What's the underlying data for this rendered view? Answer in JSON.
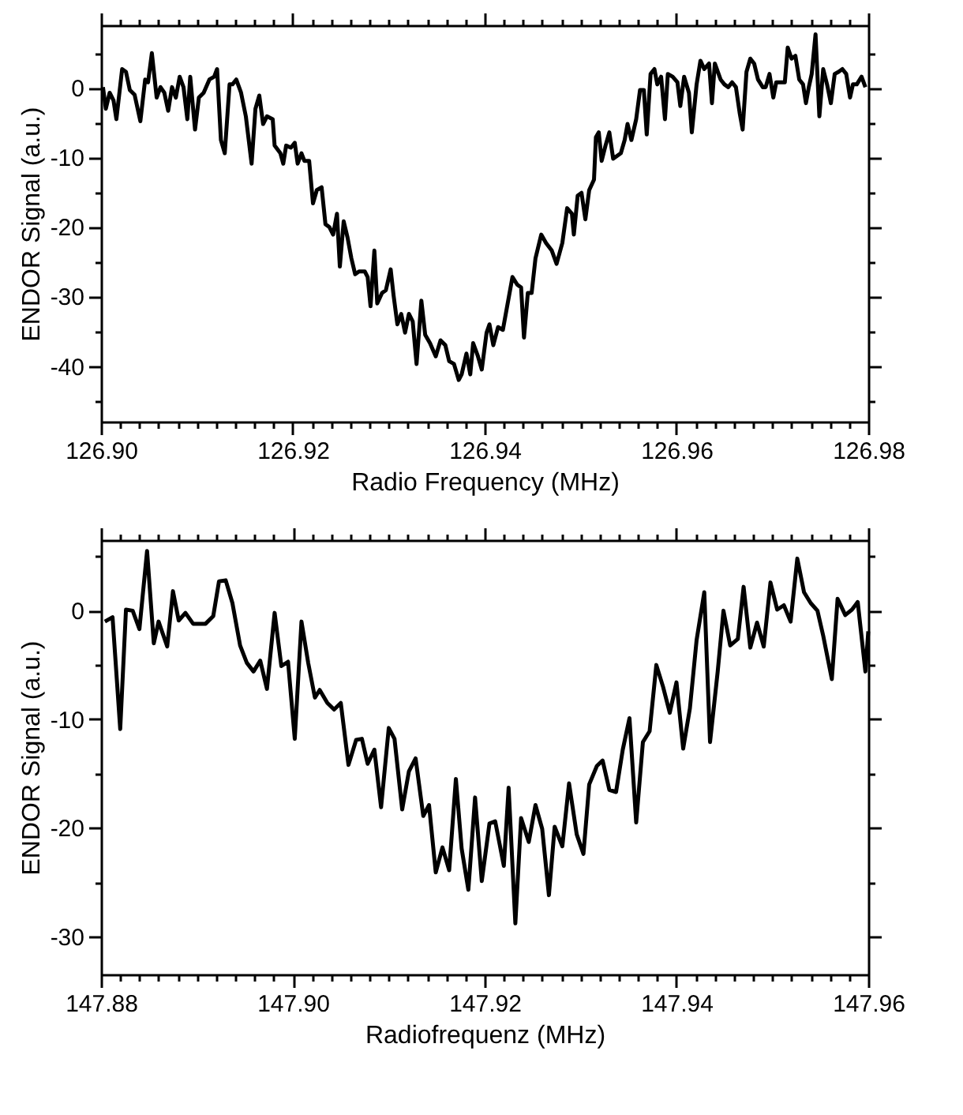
{
  "chart_data": [
    {
      "type": "line",
      "xlabel": "Radio Frequency (MHz)",
      "ylabel": "ENDOR Signal (a.u.)",
      "line_style": "solid",
      "marker": "none",
      "xlim": [
        126.9,
        126.98
      ],
      "ylim": [
        -48,
        9
      ],
      "xticks": [
        {
          "value": 126.9,
          "label": "126.90"
        },
        {
          "value": 126.902,
          "label": null
        },
        {
          "value": 126.904,
          "label": null
        },
        {
          "value": 126.906,
          "label": null
        },
        {
          "value": 126.908,
          "label": null
        },
        {
          "value": 126.91,
          "label": null
        },
        {
          "value": 126.912,
          "label": null
        },
        {
          "value": 126.914,
          "label": null
        },
        {
          "value": 126.916,
          "label": null
        },
        {
          "value": 126.918,
          "label": null
        },
        {
          "value": 126.92,
          "label": "126.92"
        },
        {
          "value": 126.922,
          "label": null
        },
        {
          "value": 126.924,
          "label": null
        },
        {
          "value": 126.926,
          "label": null
        },
        {
          "value": 126.928,
          "label": null
        },
        {
          "value": 126.93,
          "label": null
        },
        {
          "value": 126.932,
          "label": null
        },
        {
          "value": 126.934,
          "label": null
        },
        {
          "value": 126.936,
          "label": null
        },
        {
          "value": 126.938,
          "label": null
        },
        {
          "value": 126.94,
          "label": "126.94"
        },
        {
          "value": 126.942,
          "label": null
        },
        {
          "value": 126.944,
          "label": null
        },
        {
          "value": 126.946,
          "label": null
        },
        {
          "value": 126.948,
          "label": null
        },
        {
          "value": 126.95,
          "label": null
        },
        {
          "value": 126.952,
          "label": null
        },
        {
          "value": 126.954,
          "label": null
        },
        {
          "value": 126.956,
          "label": null
        },
        {
          "value": 126.958,
          "label": null
        },
        {
          "value": 126.96,
          "label": "126.96"
        },
        {
          "value": 126.962,
          "label": null
        },
        {
          "value": 126.964,
          "label": null
        },
        {
          "value": 126.966,
          "label": null
        },
        {
          "value": 126.968,
          "label": null
        },
        {
          "value": 126.97,
          "label": null
        },
        {
          "value": 126.972,
          "label": null
        },
        {
          "value": 126.974,
          "label": null
        },
        {
          "value": 126.976,
          "label": null
        },
        {
          "value": 126.978,
          "label": null
        },
        {
          "value": 126.98,
          "label": "126.98"
        }
      ],
      "yticks": [
        {
          "value": -45,
          "label": null
        },
        -40,
        {
          "value": -35,
          "label": null
        },
        -30,
        {
          "value": -25,
          "label": null
        },
        -20,
        {
          "value": -15,
          "label": null
        },
        -10,
        {
          "value": -5,
          "label": null
        },
        0,
        {
          "value": 5,
          "label": null
        }
      ],
      "x": [
        126.9002,
        126.9005,
        126.9009,
        126.9013,
        126.9016,
        126.9022,
        126.9026,
        126.903,
        126.9035,
        126.9041,
        126.9046,
        126.9049,
        126.9053,
        126.9058,
        126.9062,
        126.9066,
        126.907,
        126.9074,
        126.9078,
        126.9082,
        126.9086,
        126.909,
        126.9093,
        126.9098,
        126.9102,
        126.9107,
        126.9113,
        126.9118,
        126.9121,
        126.9125,
        126.9129,
        126.9134,
        126.9137,
        126.9141,
        126.9146,
        126.9151,
        126.9157,
        126.9161,
        126.9165,
        126.9169,
        126.9173,
        126.9179,
        126.9181,
        126.9187,
        126.919,
        126.9193,
        126.9198,
        126.9202,
        126.9205,
        126.9209,
        126.9212,
        126.9217,
        126.9221,
        126.9225,
        126.923,
        126.9234,
        126.9238,
        126.9242,
        126.9246,
        126.9249,
        126.9253,
        126.9257,
        126.9261,
        126.9265,
        126.9269,
        126.9275,
        126.9278,
        126.9281,
        126.9285,
        126.9288,
        126.9293,
        126.9297,
        126.9302,
        126.9305,
        126.9309,
        126.9313,
        126.9317,
        126.9321,
        126.9325,
        126.9329,
        126.9334,
        126.9338,
        126.9343,
        126.9349,
        126.9354,
        126.9359,
        126.9363,
        126.9368,
        126.9373,
        126.9376,
        126.9381,
        126.9385,
        126.9388,
        126.9393,
        126.9397,
        126.9402,
        126.9405,
        126.9409,
        126.9414,
        126.9419,
        126.9429,
        126.9434,
        126.9438,
        126.9441,
        126.9445,
        126.9449,
        126.9453,
        126.9459,
        126.9464,
        126.947,
        126.9475,
        126.9481,
        126.9486,
        126.9491,
        126.9493,
        126.9497,
        126.9501,
        126.9505,
        126.9509,
        126.9514,
        126.9516,
        126.9519,
        126.9522,
        126.9526,
        126.953,
        126.9534,
        126.9538,
        126.9542,
        126.9546,
        126.9549,
        126.9553,
        126.9558,
        126.9562,
        126.9566,
        126.9569,
        126.9573,
        126.9577,
        126.958,
        126.9584,
        126.9588,
        126.9591,
        126.9596,
        126.9601,
        126.9604,
        126.9608,
        126.9613,
        126.9616,
        126.9621,
        126.9625,
        126.9629,
        126.9634,
        126.9637,
        126.964,
        126.9646,
        126.965,
        126.9654,
        126.9658,
        126.9662,
        126.9666,
        126.9669,
        126.9673,
        126.9677,
        126.9681,
        126.9685,
        126.969,
        126.9693,
        126.9697,
        126.9701,
        126.9704,
        126.9709,
        126.9713,
        126.9716,
        126.972,
        126.9724,
        126.9728,
        126.9732,
        126.9735,
        126.9738,
        126.9741,
        126.9745,
        126.9749,
        126.9753,
        126.9757,
        126.9761,
        126.9765,
        126.9769,
        126.9773,
        126.9777,
        126.9781,
        126.9784,
        126.9788,
        126.9793,
        126.9797
      ],
      "series": [
        {
          "color": "#000000",
          "values": [
            0.1,
            -3.0,
            -0.7,
            -1.8,
            -4.5,
            2.7,
            2.3,
            -0.3,
            -1.0,
            -4.8,
            1.2,
            0.8,
            5.0,
            -1.4,
            0.1,
            -0.7,
            -3.3,
            0.1,
            -1.4,
            1.6,
            0.1,
            -4.5,
            1.6,
            -6.0,
            -1.4,
            -0.7,
            1.2,
            1.6,
            2.7,
            -7.5,
            -9.4,
            0.5,
            0.5,
            1.2,
            -0.7,
            -4.1,
            -10.9,
            -3.0,
            -1.1,
            -5.2,
            -4.1,
            -4.5,
            -8.3,
            -9.4,
            -10.9,
            -8.3,
            -8.6,
            -7.9,
            -10.9,
            -9.4,
            -10.5,
            -10.5,
            -16.6,
            -14.7,
            -14.3,
            -19.6,
            -20.0,
            -21.1,
            -18.1,
            -25.7,
            -19.2,
            -21.5,
            -24.5,
            -26.8,
            -26.4,
            -26.4,
            -27.2,
            -31.4,
            -23.4,
            -31.0,
            -29.5,
            -29.1,
            -26.1,
            -29.8,
            -34.0,
            -32.5,
            -35.2,
            -32.5,
            -33.6,
            -39.7,
            -30.6,
            -35.5,
            -36.7,
            -38.6,
            -36.3,
            -37.0,
            -39.3,
            -39.7,
            -42.0,
            -41.2,
            -38.2,
            -41.2,
            -36.7,
            -38.6,
            -40.5,
            -35.2,
            -34.0,
            -37.0,
            -34.4,
            -34.8,
            -27.2,
            -28.3,
            -28.7,
            -35.9,
            -29.5,
            -29.5,
            -24.5,
            -21.1,
            -22.3,
            -23.4,
            -25.3,
            -22.3,
            -17.3,
            -18.1,
            -21.1,
            -15.5,
            -15.1,
            -18.9,
            -14.7,
            -13.2,
            -7.1,
            -6.4,
            -10.5,
            -8.3,
            -6.4,
            -10.2,
            -9.8,
            -9.4,
            -7.5,
            -5.2,
            -7.5,
            -4.5,
            -0.3,
            -0.3,
            -6.7,
            2.0,
            2.7,
            0.5,
            1.6,
            -4.5,
            2.0,
            1.6,
            0.8,
            -2.6,
            1.6,
            -0.7,
            -6.4,
            0.5,
            3.9,
            2.7,
            3.5,
            -2.2,
            3.5,
            1.2,
            0.5,
            0.1,
            0.8,
            0.1,
            -3.7,
            -6.0,
            2.3,
            4.2,
            3.5,
            1.2,
            0.1,
            0.1,
            2.0,
            -1.4,
            0.8,
            0.8,
            0.8,
            5.8,
            4.2,
            4.6,
            1.2,
            0.5,
            -2.2,
            0.1,
            2.0,
            7.7,
            -4.1,
            2.7,
            0.5,
            -2.2,
            2.0,
            2.3,
            2.7,
            2.0,
            -1.4,
            0.5,
            0.5,
            1.6,
            0.1
          ]
        }
      ]
    },
    {
      "type": "line",
      "xlabel": "Radiofrequenz (MHz)",
      "ylabel": "ENDOR Signal (a.u.)",
      "line_style": "solid",
      "marker": "none",
      "xlim": [
        147.88,
        147.96
      ],
      "ylim": [
        -33.5,
        6.5
      ],
      "xticks": [
        {
          "value": 147.88,
          "label": "147.88"
        },
        {
          "value": 147.882,
          "label": null
        },
        {
          "value": 147.884,
          "label": null
        },
        {
          "value": 147.886,
          "label": null
        },
        {
          "value": 147.888,
          "label": null
        },
        {
          "value": 147.89,
          "label": null
        },
        {
          "value": 147.892,
          "label": null
        },
        {
          "value": 147.894,
          "label": null
        },
        {
          "value": 147.896,
          "label": null
        },
        {
          "value": 147.898,
          "label": null
        },
        {
          "value": 147.9,
          "label": "147.90"
        },
        {
          "value": 147.902,
          "label": null
        },
        {
          "value": 147.904,
          "label": null
        },
        {
          "value": 147.906,
          "label": null
        },
        {
          "value": 147.908,
          "label": null
        },
        {
          "value": 147.91,
          "label": null
        },
        {
          "value": 147.912,
          "label": null
        },
        {
          "value": 147.914,
          "label": null
        },
        {
          "value": 147.916,
          "label": null
        },
        {
          "value": 147.918,
          "label": null
        },
        {
          "value": 147.92,
          "label": "147.92"
        },
        {
          "value": 147.922,
          "label": null
        },
        {
          "value": 147.924,
          "label": null
        },
        {
          "value": 147.926,
          "label": null
        },
        {
          "value": 147.928,
          "label": null
        },
        {
          "value": 147.93,
          "label": null
        },
        {
          "value": 147.932,
          "label": null
        },
        {
          "value": 147.934,
          "label": null
        },
        {
          "value": 147.936,
          "label": null
        },
        {
          "value": 147.938,
          "label": null
        },
        {
          "value": 147.94,
          "label": "147.94"
        },
        {
          "value": 147.942,
          "label": null
        },
        {
          "value": 147.944,
          "label": null
        },
        {
          "value": 147.946,
          "label": null
        },
        {
          "value": 147.948,
          "label": null
        },
        {
          "value": 147.95,
          "label": null
        },
        {
          "value": 147.952,
          "label": null
        },
        {
          "value": 147.954,
          "label": null
        },
        {
          "value": 147.956,
          "label": null
        },
        {
          "value": 147.958,
          "label": null
        },
        {
          "value": 147.96,
          "label": "147.96"
        }
      ],
      "yticks": [
        -30,
        {
          "value": -25,
          "label": null
        },
        -20,
        {
          "value": -15,
          "label": null
        },
        -10,
        {
          "value": -5,
          "label": null
        },
        0,
        {
          "value": 5,
          "label": null
        }
      ],
      "x": [
        147.8804,
        147.8812,
        147.882,
        147.8826,
        147.8833,
        147.884,
        147.8848,
        147.8855,
        147.886,
        147.8869,
        147.8875,
        147.8881,
        147.8888,
        147.8896,
        147.8909,
        147.8917,
        147.8923,
        147.893,
        147.8937,
        147.8945,
        147.8952,
        147.8959,
        147.8966,
        147.8973,
        147.8981,
        147.8988,
        147.8995,
        147.9002,
        147.9009,
        147.9016,
        147.9023,
        147.9028,
        147.9036,
        147.9043,
        147.905,
        147.9058,
        147.9066,
        147.9072,
        147.9078,
        147.9085,
        147.9092,
        147.91,
        147.9106,
        147.9114,
        147.9121,
        147.9128,
        147.9136,
        147.9142,
        147.9149,
        147.9156,
        147.9163,
        147.917,
        147.9176,
        147.9183,
        147.919,
        147.9197,
        147.9205,
        147.9211,
        147.922,
        147.9225,
        147.9232,
        147.9238,
        147.9246,
        147.9253,
        147.926,
        147.9267,
        147.9273,
        147.9281,
        147.9288,
        147.9296,
        147.9303,
        147.9309,
        147.9317,
        147.9323,
        147.933,
        147.9337,
        147.9344,
        147.9351,
        147.9358,
        147.9365,
        147.9372,
        147.9379,
        147.9386,
        147.9393,
        147.94,
        147.9407,
        147.9414,
        147.9421,
        147.9429,
        147.9435,
        147.9443,
        147.9449,
        147.9456,
        147.9464,
        147.947,
        147.9477,
        147.9484,
        147.9491,
        147.9498,
        147.9505,
        147.9512,
        147.9519,
        147.9526,
        147.9533,
        147.954,
        147.9547,
        147.9553,
        147.9562,
        147.9568,
        147.9576,
        147.9583,
        147.9589,
        147.9597,
        147.96
      ],
      "series": [
        {
          "color": "#000000",
          "values": [
            -1.0,
            -0.6,
            -10.9,
            0.1,
            0.0,
            -1.7,
            5.5,
            -3.0,
            -1.0,
            -3.3,
            1.8,
            -0.9,
            -0.2,
            -1.2,
            -1.2,
            -0.5,
            2.7,
            2.8,
            0.7,
            -3.2,
            -4.8,
            -5.6,
            -4.6,
            -7.2,
            -0.2,
            -5.1,
            -4.7,
            -11.8,
            -1.0,
            -4.8,
            -8.0,
            -7.3,
            -8.5,
            -9.1,
            -8.5,
            -14.2,
            -11.9,
            -11.8,
            -14.1,
            -12.8,
            -18.1,
            -10.8,
            -11.8,
            -18.3,
            -14.8,
            -13.6,
            -18.9,
            -17.9,
            -24.1,
            -21.8,
            -23.9,
            -15.5,
            -21.9,
            -25.7,
            -17.2,
            -24.9,
            -19.6,
            -19.4,
            -23.5,
            -16.3,
            -28.8,
            -19.1,
            -21.3,
            -17.9,
            -20.1,
            -26.2,
            -19.9,
            -21.7,
            -15.9,
            -20.6,
            -22.4,
            -16.0,
            -14.3,
            -13.8,
            -16.5,
            -16.7,
            -12.8,
            -9.9,
            -19.5,
            -12.1,
            -11.1,
            -5.0,
            -7.0,
            -9.4,
            -6.6,
            -12.7,
            -9.0,
            -2.7,
            1.7,
            -12.1,
            -5.6,
            0.0,
            -3.2,
            -2.6,
            2.2,
            -3.4,
            -1.1,
            -3.3,
            2.6,
            0.1,
            0.5,
            -1.0,
            4.8,
            1.7,
            0.7,
            0.0,
            -2.3,
            -6.3,
            1.1,
            -0.4,
            0.1,
            0.8,
            -5.6,
            -1.9
          ]
        }
      ]
    }
  ]
}
